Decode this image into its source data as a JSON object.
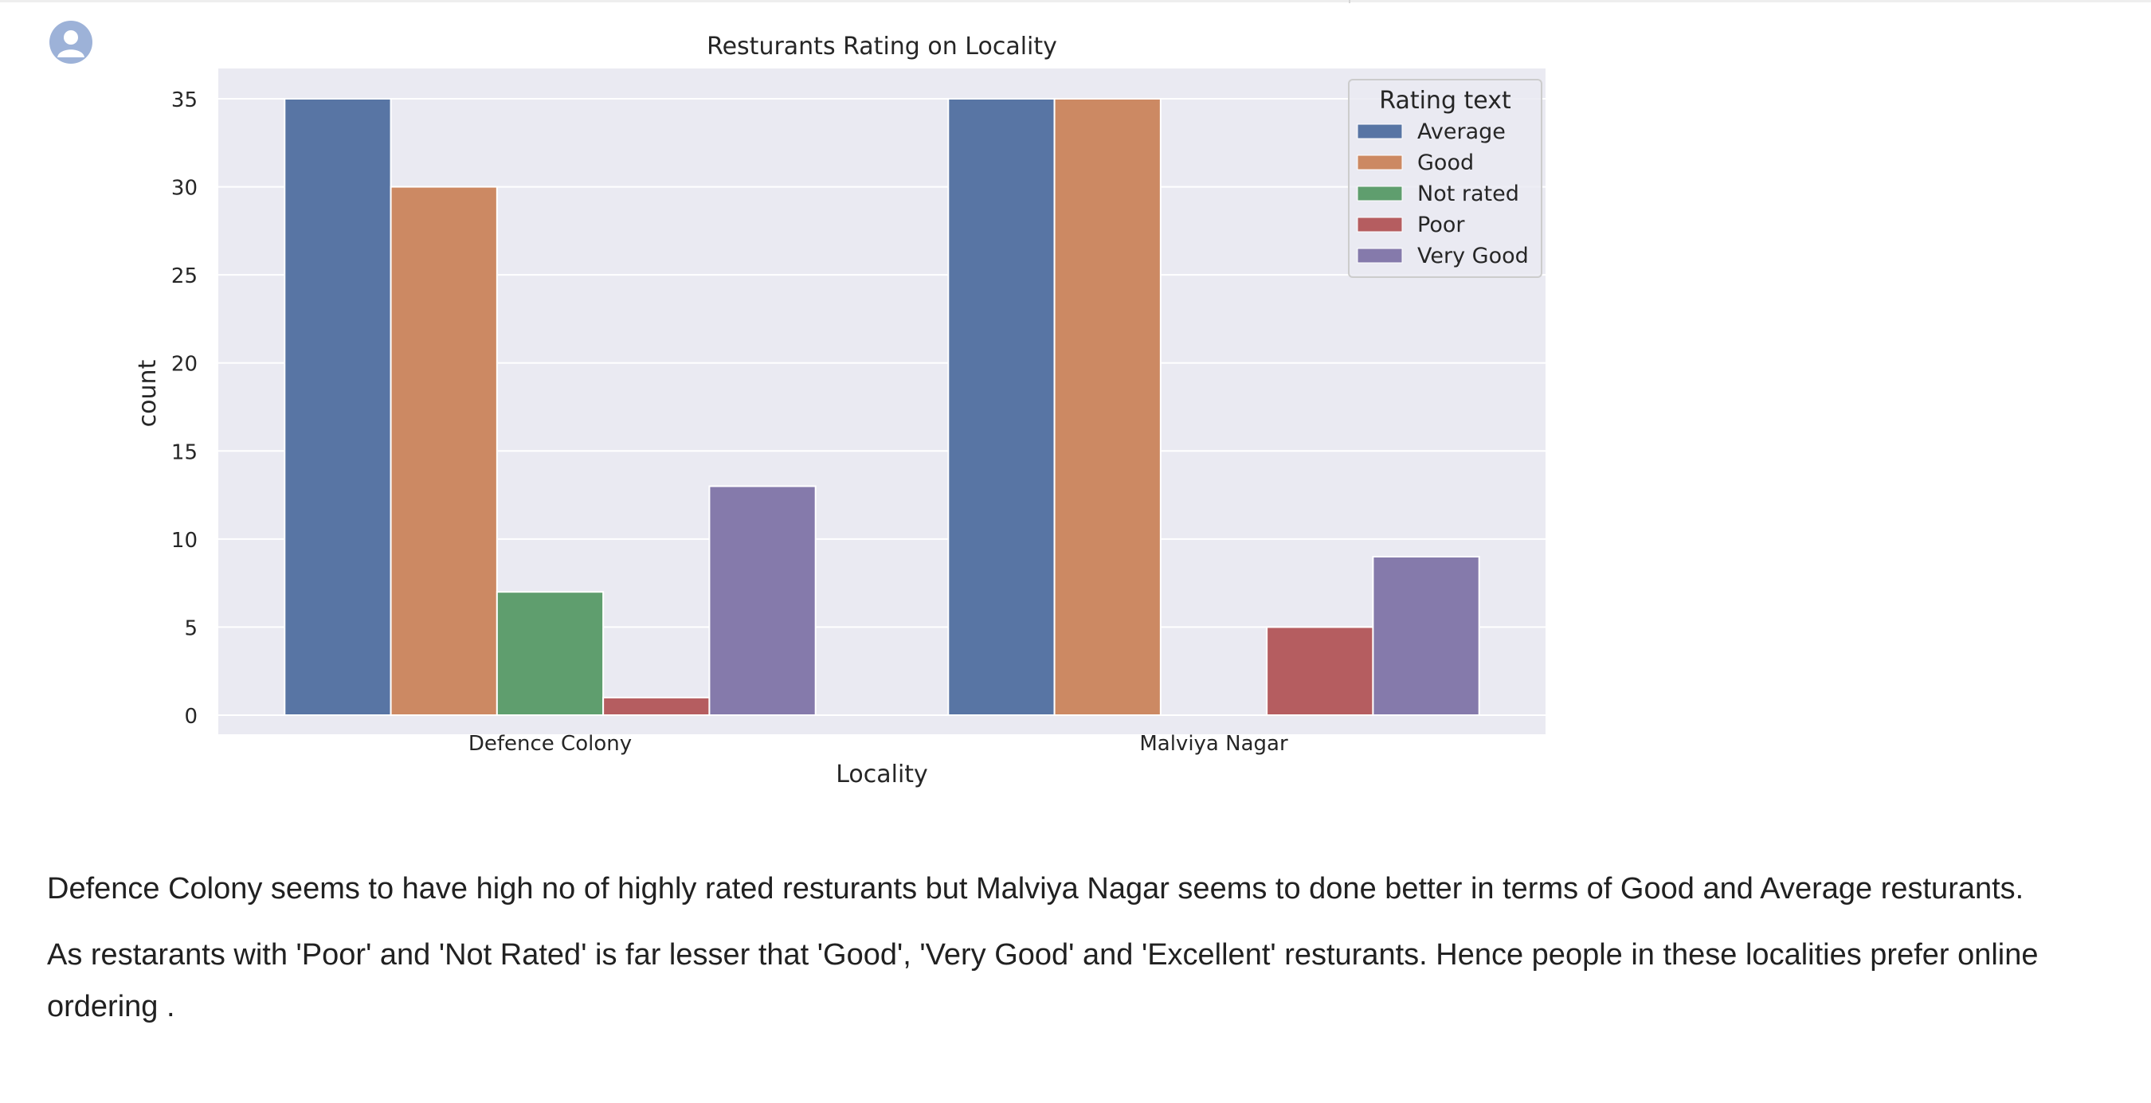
{
  "user": {
    "avatar_icon": "user-avatar-icon"
  },
  "chart_data": {
    "type": "bar",
    "title": "Resturants Rating on Locality",
    "xlabel": "Locality",
    "ylabel": "count",
    "categories": [
      "Defence Colony",
      "Malviya Nagar"
    ],
    "series": [
      {
        "name": "Average",
        "color": "#5875a4",
        "values": [
          35,
          35
        ]
      },
      {
        "name": "Good",
        "color": "#cc8963",
        "values": [
          30,
          35
        ]
      },
      {
        "name": "Not rated",
        "color": "#5f9e6e",
        "values": [
          7,
          0
        ]
      },
      {
        "name": "Poor",
        "color": "#b55d60",
        "values": [
          1,
          5
        ]
      },
      {
        "name": "Very Good",
        "color": "#857aab",
        "values": [
          13,
          9
        ]
      }
    ],
    "ylim": [
      0,
      35
    ],
    "yticks": [
      0,
      5,
      10,
      15,
      20,
      25,
      30,
      35
    ],
    "grid": true,
    "legend": {
      "title": "Rating text",
      "position": "top-right"
    },
    "background": "#eaeaf2"
  },
  "notes": [
    "Defence Colony seems to have high no of highly rated resturants but Malviya Nagar seems to done better in terms of Good and Average resturants.",
    "As restarants with 'Poor' and 'Not Rated' is far lesser that 'Good', 'Very Good' and 'Excellent' resturants. Hence people in these localities prefer online ordering ."
  ]
}
